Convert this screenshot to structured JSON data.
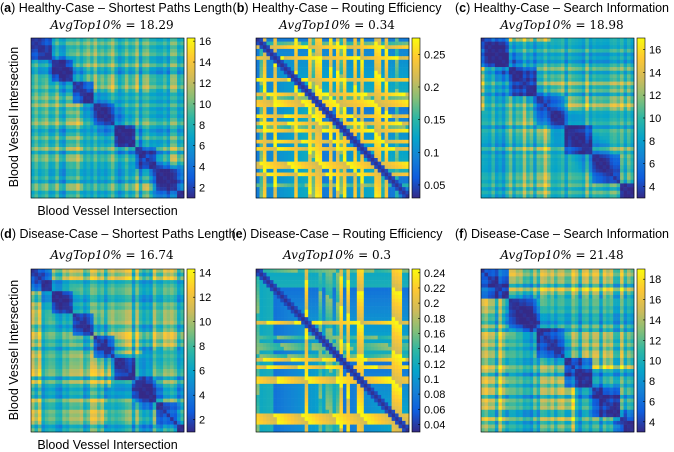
{
  "colors": {
    "colormap": "parula",
    "low": "#352a87",
    "mid": "#15b1b4",
    "high": "#f9fb0e"
  },
  "common": {
    "xlabel": "Blood Vessel Intersection",
    "ylabel": "Blood Vessel Intersection"
  },
  "chart_data": [
    {
      "type": "heatmap",
      "letter": "a",
      "title": "Healthy-Case – Shortest Paths Length",
      "metric_label": "AvgTop10%",
      "metric_value": "18.29",
      "ylabel": "Blood Vessel Intersection",
      "xlabel": "Blood Vessel Intersection",
      "colorbar": {
        "range": [
          1,
          16.3
        ],
        "ticks": [
          "2",
          "4",
          "6",
          "8",
          "10",
          "12",
          "14",
          "16"
        ],
        "tick_values": [
          2,
          4,
          6,
          8,
          10,
          12,
          14,
          16
        ]
      }
    },
    {
      "type": "heatmap",
      "letter": "b",
      "title": "Healthy-Case – Routing Efficiency",
      "metric_label": "AvgTop10%",
      "metric_value": "0.34",
      "ylabel": "",
      "xlabel": "",
      "colorbar": {
        "range": [
          0.03,
          0.275
        ],
        "ticks": [
          "0.05",
          "0.1",
          "0.15",
          "0.2",
          "0.25"
        ],
        "tick_values": [
          0.05,
          0.1,
          0.15,
          0.2,
          0.25
        ]
      }
    },
    {
      "type": "heatmap",
      "letter": "c",
      "title": "Healthy-Case – Search Information",
      "metric_label": "AvgTop10%",
      "metric_value": "18.98",
      "ylabel": "",
      "xlabel": "",
      "colorbar": {
        "range": [
          3,
          17
        ],
        "ticks": [
          "4",
          "6",
          "8",
          "10",
          "12",
          "14",
          "16"
        ],
        "tick_values": [
          4,
          6,
          8,
          10,
          12,
          14,
          16
        ]
      }
    },
    {
      "type": "heatmap",
      "letter": "d",
      "title": "Disease-Case – Shortest Paths Length",
      "metric_label": "AvgTop10%",
      "metric_value": "16.74",
      "ylabel": "Blood Vessel Intersection",
      "xlabel": "Blood Vessel Intersection",
      "colorbar": {
        "range": [
          1,
          14.3
        ],
        "ticks": [
          "2",
          "4",
          "6",
          "8",
          "10",
          "12",
          "14"
        ],
        "tick_values": [
          2,
          4,
          6,
          8,
          10,
          12,
          14
        ]
      }
    },
    {
      "type": "heatmap",
      "letter": "e",
      "title": "Disease-Case – Routing Efficiency",
      "metric_label": "AvgTop10%",
      "metric_value": "0.3",
      "ylabel": "",
      "xlabel": "",
      "colorbar": {
        "range": [
          0.03,
          0.245
        ],
        "ticks": [
          "0.04",
          "0.06",
          "0.08",
          "0.1",
          "0.12",
          "0.14",
          "0.16",
          "0.18",
          "0.2",
          "0.22",
          "0.24"
        ],
        "tick_values": [
          0.04,
          0.06,
          0.08,
          0.1,
          0.12,
          0.14,
          0.16,
          0.18,
          0.2,
          0.22,
          0.24
        ]
      }
    },
    {
      "type": "heatmap",
      "letter": "f",
      "title": "Disease-Case – Search Information",
      "metric_label": "AvgTop10%",
      "metric_value": "21.48",
      "ylabel": "",
      "xlabel": "",
      "colorbar": {
        "range": [
          3,
          19
        ],
        "ticks": [
          "4",
          "6",
          "8",
          "10",
          "12",
          "14",
          "16",
          "18"
        ],
        "tick_values": [
          4,
          6,
          8,
          10,
          12,
          14,
          16,
          18
        ]
      }
    }
  ]
}
